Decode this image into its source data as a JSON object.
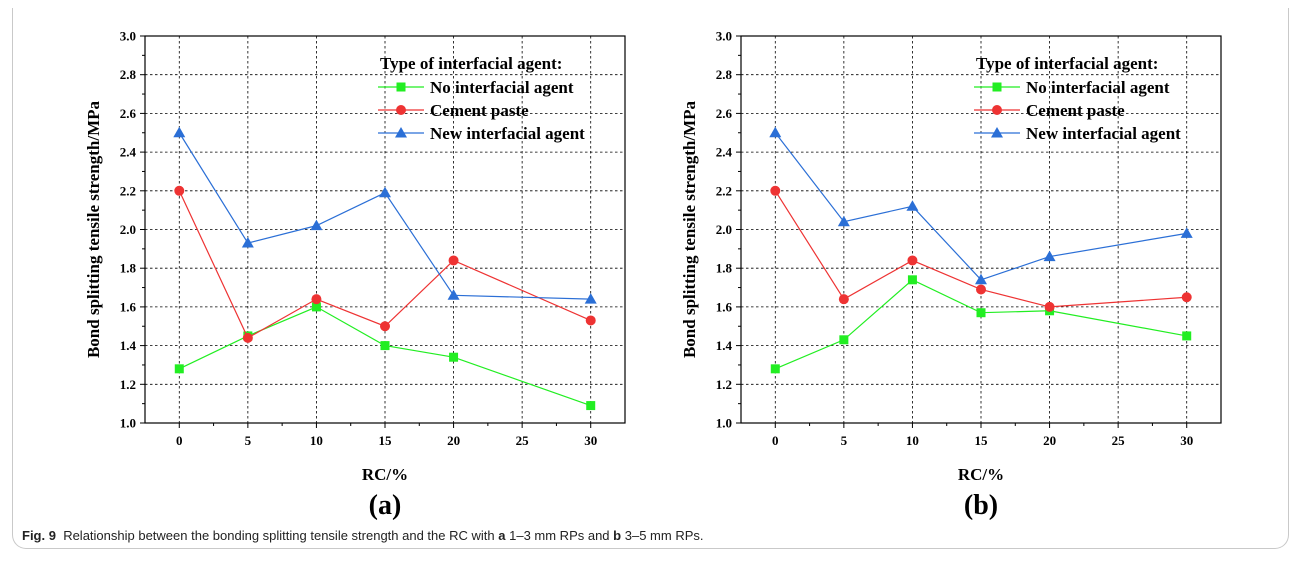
{
  "caption": {
    "fig_label": "Fig. 9",
    "t1": "Relationship between the bonding splitting tensile strength and the RC with",
    "a": "a",
    "t2": "1–3 mm RPs and",
    "b": "b",
    "t3": "3–5 mm RPs."
  },
  "colors": {
    "no_agent": "#22ee22",
    "cement": "#ee3333",
    "new_agent": "#2b6fd6"
  },
  "chart_data": [
    {
      "type": "line",
      "panel_label": "(a)",
      "xlabel": "RC/%",
      "ylabel": "Bond splitting tensile strength/MPa",
      "xlim": [
        -2.5,
        32.5
      ],
      "ylim": [
        1.0,
        3.0
      ],
      "xticks": [
        0,
        5,
        10,
        15,
        20,
        25,
        30
      ],
      "yticks": [
        1.0,
        1.2,
        1.4,
        1.6,
        1.8,
        2.0,
        2.2,
        2.4,
        2.6,
        2.8,
        3.0
      ],
      "grid": true,
      "legend_title": "Type of interfacial agent:",
      "legend_position": "top-right",
      "x": [
        0,
        5,
        10,
        15,
        20,
        30
      ],
      "series": [
        {
          "name": "No interfacial agent",
          "marker": "square",
          "values": [
            1.28,
            1.45,
            1.6,
            1.4,
            1.34,
            1.09
          ]
        },
        {
          "name": "Cement paste",
          "marker": "circle",
          "values": [
            2.2,
            1.44,
            1.64,
            1.5,
            1.84,
            1.53
          ]
        },
        {
          "name": "New interfacial agent",
          "marker": "triangle",
          "values": [
            2.5,
            1.93,
            2.02,
            2.19,
            1.66,
            1.64
          ]
        }
      ]
    },
    {
      "type": "line",
      "panel_label": "(b)",
      "xlabel": "RC/%",
      "ylabel": "Bond splitting tensile strength/MPa",
      "xlim": [
        -2.5,
        32.5
      ],
      "ylim": [
        1.0,
        3.0
      ],
      "xticks": [
        0,
        5,
        10,
        15,
        20,
        25,
        30
      ],
      "yticks": [
        1.0,
        1.2,
        1.4,
        1.6,
        1.8,
        2.0,
        2.2,
        2.4,
        2.6,
        2.8,
        3.0
      ],
      "grid": true,
      "legend_title": "Type of interfacial agent:",
      "legend_position": "top-right",
      "x": [
        0,
        5,
        10,
        15,
        20,
        30
      ],
      "series": [
        {
          "name": "No interfacial agent",
          "marker": "square",
          "values": [
            1.28,
            1.43,
            1.74,
            1.57,
            1.58,
            1.45
          ]
        },
        {
          "name": "Cement paste",
          "marker": "circle",
          "values": [
            2.2,
            1.64,
            1.84,
            1.69,
            1.6,
            1.65
          ]
        },
        {
          "name": "New interfacial agent",
          "marker": "triangle",
          "values": [
            2.5,
            2.04,
            2.12,
            1.74,
            1.86,
            1.98
          ]
        }
      ]
    }
  ]
}
